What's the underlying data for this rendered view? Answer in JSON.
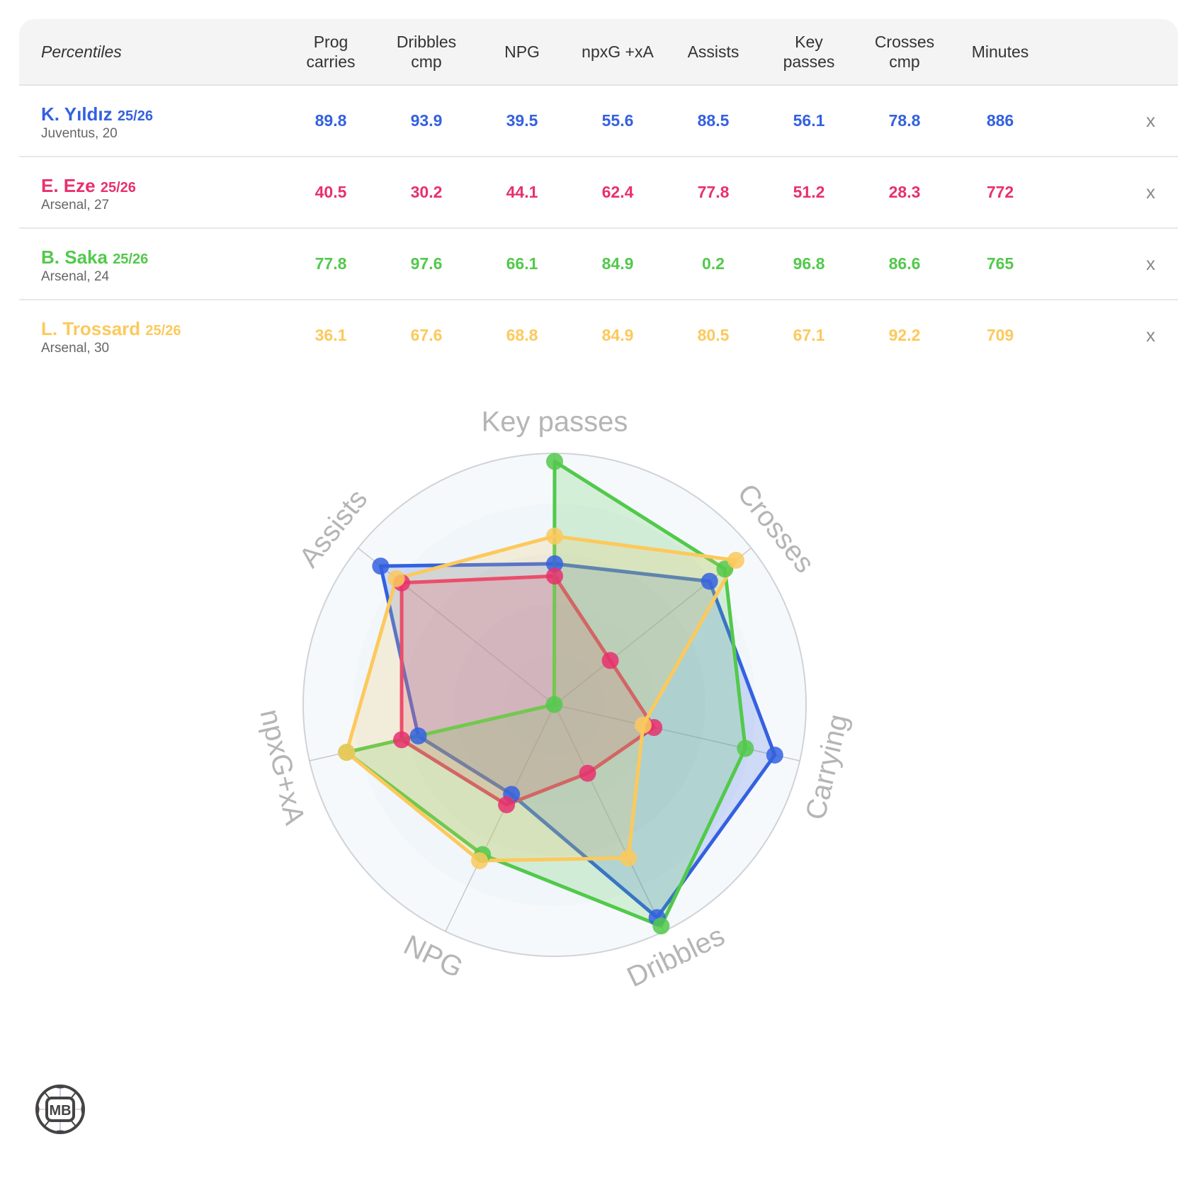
{
  "table": {
    "header_label": "Percentiles",
    "columns": [
      "Prog\ncarries",
      "Dribbles\ncmp",
      "NPG",
      "npxG +xA",
      "Assists",
      "Key\npasses",
      "Crosses\ncmp",
      "Minutes"
    ],
    "remove_label": "x",
    "players": [
      {
        "name": "K. Yıldız",
        "season": "25/26",
        "team": "Juventus, 20",
        "color": "#3461e0",
        "values": [
          "89.8",
          "93.9",
          "39.5",
          "55.6",
          "88.5",
          "56.1",
          "78.8",
          "886"
        ]
      },
      {
        "name": "E. Eze",
        "season": "25/26",
        "team": "Arsenal, 27",
        "color": "#e8306f",
        "values": [
          "40.5",
          "30.2",
          "44.1",
          "62.4",
          "77.8",
          "51.2",
          "28.3",
          "772"
        ]
      },
      {
        "name": "B. Saka",
        "season": "25/26",
        "team": "Arsenal, 24",
        "color": "#52c94b",
        "values": [
          "77.8",
          "97.6",
          "66.1",
          "84.9",
          "0.2",
          "96.8",
          "86.6",
          "765"
        ]
      },
      {
        "name": "L. Trossard",
        "season": "25/26",
        "team": "Arsenal, 30",
        "color": "#fcc95c",
        "values": [
          "36.1",
          "67.6",
          "68.8",
          "84.9",
          "80.5",
          "67.1",
          "92.2",
          "709"
        ]
      }
    ]
  },
  "chart_data": {
    "type": "radar",
    "title": "",
    "axes": [
      "Key passes",
      "Crosses",
      "Carrying",
      "Dribbles",
      "NPG",
      "npxG+xA",
      "Assists"
    ],
    "range": [
      0,
      100
    ],
    "grid": true,
    "series": [
      {
        "name": "K. Yıldız",
        "color": "#3461e0",
        "values": [
          56.1,
          78.8,
          89.8,
          93.9,
          39.5,
          55.6,
          88.5
        ]
      },
      {
        "name": "E. Eze",
        "color": "#e8306f",
        "values": [
          51.2,
          28.3,
          40.5,
          30.2,
          44.1,
          62.4,
          77.8
        ]
      },
      {
        "name": "B. Saka",
        "color": "#52c94b",
        "values": [
          96.8,
          86.6,
          77.8,
          97.6,
          66.1,
          84.9,
          0.2
        ]
      },
      {
        "name": "L. Trossard",
        "color": "#fcc95c",
        "values": [
          67.1,
          92.2,
          36.1,
          67.6,
          68.8,
          84.9,
          80.5
        ]
      }
    ]
  },
  "logo": {
    "text": "MB"
  }
}
